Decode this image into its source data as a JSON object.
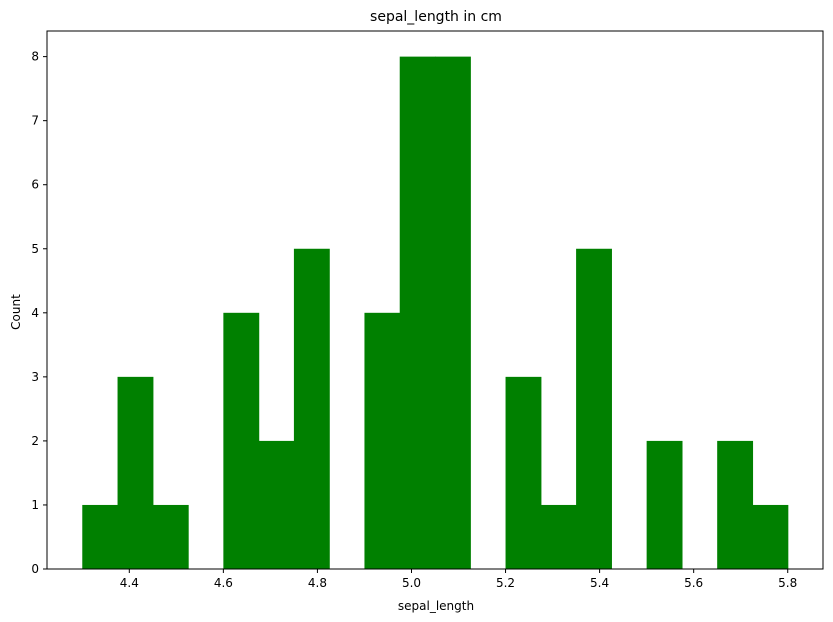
{
  "chart_data": {
    "type": "bar",
    "title": "sepal_length in cm",
    "xlabel": "sepal_length",
    "ylabel": "Count",
    "xlim": [
      4.225,
      5.875
    ],
    "ylim": [
      0,
      8.4
    ],
    "bar_color": "#008000",
    "bins": [
      {
        "x0": 4.3,
        "x1": 4.375,
        "count": 1
      },
      {
        "x0": 4.375,
        "x1": 4.45,
        "count": 3
      },
      {
        "x0": 4.45,
        "x1": 4.525,
        "count": 1
      },
      {
        "x0": 4.525,
        "x1": 4.6,
        "count": 0
      },
      {
        "x0": 4.6,
        "x1": 4.675,
        "count": 4
      },
      {
        "x0": 4.675,
        "x1": 4.75,
        "count": 2
      },
      {
        "x0": 4.75,
        "x1": 4.825,
        "count": 5
      },
      {
        "x0": 4.825,
        "x1": 4.9,
        "count": 0
      },
      {
        "x0": 4.9,
        "x1": 4.975,
        "count": 4
      },
      {
        "x0": 4.975,
        "x1": 5.05,
        "count": 8
      },
      {
        "x0": 5.05,
        "x1": 5.125,
        "count": 8
      },
      {
        "x0": 5.125,
        "x1": 5.2,
        "count": 0
      },
      {
        "x0": 5.2,
        "x1": 5.275,
        "count": 3
      },
      {
        "x0": 5.275,
        "x1": 5.35,
        "count": 1
      },
      {
        "x0": 5.35,
        "x1": 5.425,
        "count": 5
      },
      {
        "x0": 5.425,
        "x1": 5.5,
        "count": 0
      },
      {
        "x0": 5.5,
        "x1": 5.575,
        "count": 2
      },
      {
        "x0": 5.575,
        "x1": 5.65,
        "count": 0
      },
      {
        "x0": 5.65,
        "x1": 5.725,
        "count": 2
      },
      {
        "x0": 5.725,
        "x1": 5.8,
        "count": 1
      }
    ],
    "x_ticks": [
      {
        "value": 4.4,
        "label": "4.4"
      },
      {
        "value": 4.6,
        "label": "4.6"
      },
      {
        "value": 4.8,
        "label": "4.8"
      },
      {
        "value": 5.0,
        "label": "5.0"
      },
      {
        "value": 5.2,
        "label": "5.2"
      },
      {
        "value": 5.4,
        "label": "5.4"
      },
      {
        "value": 5.6,
        "label": "5.6"
      },
      {
        "value": 5.8,
        "label": "5.8"
      }
    ],
    "y_ticks": [
      {
        "value": 0,
        "label": "0"
      },
      {
        "value": 1,
        "label": "1"
      },
      {
        "value": 2,
        "label": "2"
      },
      {
        "value": 3,
        "label": "3"
      },
      {
        "value": 4,
        "label": "4"
      },
      {
        "value": 5,
        "label": "5"
      },
      {
        "value": 6,
        "label": "6"
      },
      {
        "value": 7,
        "label": "7"
      },
      {
        "value": 8,
        "label": "8"
      }
    ],
    "grid": false,
    "legend": "none"
  }
}
